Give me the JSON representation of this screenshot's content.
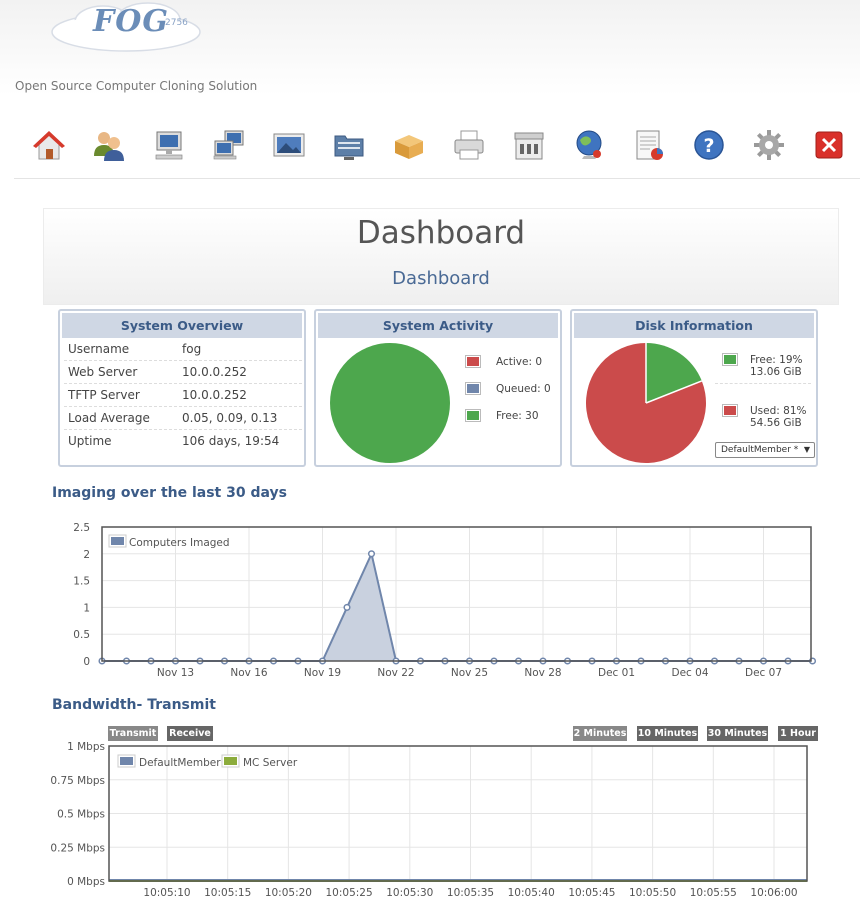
{
  "header": {
    "logo_text": "FOG",
    "logo_version": "2756",
    "tagline": "Open Source Computer Cloning Solution"
  },
  "nav": [
    {
      "icon": "home-icon"
    },
    {
      "icon": "users-icon"
    },
    {
      "icon": "host-computer-icon"
    },
    {
      "icon": "groups-icon"
    },
    {
      "icon": "images-icon"
    },
    {
      "icon": "storage-icon"
    },
    {
      "icon": "snapins-icon"
    },
    {
      "icon": "printers-icon"
    },
    {
      "icon": "service-icon"
    },
    {
      "icon": "tasks-globe-icon"
    },
    {
      "icon": "reports-icon"
    },
    {
      "icon": "help-icon"
    },
    {
      "icon": "settings-gear-icon"
    },
    {
      "icon": "logout-close-icon"
    }
  ],
  "dashboard": {
    "title": "Dashboard",
    "subtitle": "Dashboard"
  },
  "system_overview": {
    "title": "System Overview",
    "rows": [
      {
        "key": "Username",
        "value": "fog"
      },
      {
        "key": "Web Server",
        "value": "10.0.0.252"
      },
      {
        "key": "TFTP Server",
        "value": "10.0.0.252"
      },
      {
        "key": "Load Average",
        "value": "0.05, 0.09, 0.13"
      },
      {
        "key": "Uptime",
        "value": "106 days, 19:54"
      }
    ]
  },
  "system_activity": {
    "title": "System Activity",
    "legend": [
      {
        "label": "Active: 0",
        "color": "#cb4b4b"
      },
      {
        "label": "Queued: 0",
        "color": "#7086ab"
      },
      {
        "label": "Free: 30",
        "color": "#4da74d"
      }
    ],
    "values": {
      "active": 0,
      "queued": 0,
      "free": 30
    }
  },
  "disk_information": {
    "title": "Disk Information",
    "legend": [
      {
        "line1": "Free: 19%",
        "line2": "13.06 GiB",
        "color": "#4da74d"
      },
      {
        "line1": "Used: 81%",
        "line2": "54.56 GiB",
        "color": "#cb4b4b"
      }
    ],
    "free_fraction": 0.19,
    "select_value": "DefaultMember *"
  },
  "imaging": {
    "title": "Imaging over the last 30 days"
  },
  "bandwidth": {
    "title": "Bandwidth- Transmit",
    "buttons_left": [
      "Transmit",
      "Receive"
    ],
    "buttons_right": [
      "2 Minutes",
      "10 Minutes",
      "30 Minutes",
      "1 Hour"
    ]
  },
  "chart_data": [
    {
      "type": "area",
      "legend": [
        "Computers Imaged"
      ],
      "ylim": [
        0,
        2.5
      ],
      "yticks": [
        "0",
        "0.5",
        "1",
        "1.5",
        "2",
        "2.5"
      ],
      "xticks": [
        "Nov 13",
        "Nov 16",
        "Nov 19",
        "Nov 22",
        "Nov 25",
        "Nov 28",
        "Dec 01",
        "Dec 04",
        "Dec 07"
      ],
      "series": [
        {
          "name": "Computers Imaged",
          "color": "#7086ab",
          "x_start": "Nov 10",
          "values": [
            0,
            0,
            0,
            0,
            0,
            0,
            0,
            0,
            0,
            0,
            1,
            2,
            0,
            0,
            0,
            0,
            0,
            0,
            0,
            0,
            0,
            0,
            0,
            0,
            0,
            0,
            0,
            0,
            0,
            0
          ]
        }
      ]
    },
    {
      "type": "line",
      "legend": [
        "DefaultMember",
        "MC Server"
      ],
      "ylim": [
        0,
        1
      ],
      "yticks": [
        "0 Mbps",
        "0.25 Mbps",
        "0.5 Mbps",
        "0.75 Mbps",
        "1 Mbps"
      ],
      "xticks": [
        "10:05:10",
        "10:05:15",
        "10:05:20",
        "10:05:25",
        "10:05:30",
        "10:05:35",
        "10:05:40",
        "10:05:45",
        "10:05:50",
        "10:05:55",
        "10:06:00"
      ],
      "series": [
        {
          "name": "DefaultMember",
          "color": "#7086ab",
          "values": [
            0,
            0,
            0,
            0,
            0,
            0,
            0,
            0,
            0,
            0,
            0
          ]
        },
        {
          "name": "MC Server",
          "color": "#8cac3c",
          "values": [
            0,
            0,
            0,
            0,
            0,
            0,
            0,
            0,
            0,
            0,
            0
          ]
        }
      ]
    }
  ]
}
